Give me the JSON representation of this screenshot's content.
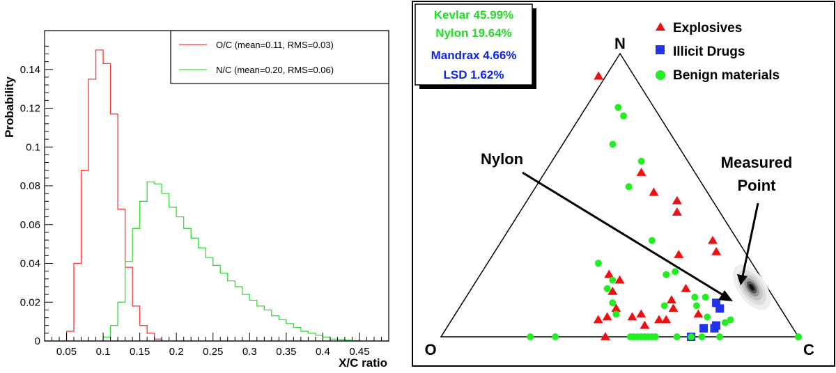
{
  "chart_data": [
    {
      "type": "histogram",
      "xlabel": "X/C ratio",
      "ylabel": "Probability",
      "xlim": [
        0.02,
        0.49
      ],
      "ylim": [
        0,
        0.16
      ],
      "x_ticks": [
        "0.05",
        "0.1",
        "0.15",
        "0.2",
        "0.25",
        "0.3",
        "0.35",
        "0.4",
        "0.45"
      ],
      "x_tick_values": [
        0.05,
        0.1,
        0.15,
        0.2,
        0.25,
        0.3,
        0.35,
        0.4,
        0.45
      ],
      "y_ticks": [
        "0",
        "0.02",
        "0.04",
        "0.06",
        "0.08",
        "0.1",
        "0.12",
        "0.14"
      ],
      "y_tick_values": [
        0,
        0.02,
        0.04,
        0.06,
        0.08,
        0.1,
        0.12,
        0.14
      ],
      "grid": false,
      "legend_position": "top-right",
      "series": [
        {
          "name": "O/C (mean=0.11, RMS=0.03)",
          "color": "#ff3333",
          "bin_edges": [
            0.05,
            0.06,
            0.07,
            0.08,
            0.09,
            0.1,
            0.11,
            0.12,
            0.13,
            0.14,
            0.15,
            0.16,
            0.17,
            0.18
          ],
          "values": [
            0.005,
            0.04,
            0.088,
            0.135,
            0.15,
            0.143,
            0.117,
            0.068,
            0.038,
            0.018,
            0.008,
            0.004,
            0.001
          ]
        },
        {
          "name": "N/C (mean=0.20, RMS=0.06)",
          "color": "#33dd33",
          "bin_edges": [
            0.1,
            0.11,
            0.12,
            0.13,
            0.14,
            0.15,
            0.16,
            0.17,
            0.18,
            0.19,
            0.2,
            0.21,
            0.22,
            0.23,
            0.24,
            0.25,
            0.26,
            0.27,
            0.28,
            0.29,
            0.3,
            0.31,
            0.32,
            0.33,
            0.34,
            0.35,
            0.36,
            0.37,
            0.38,
            0.39,
            0.4,
            0.41,
            0.42,
            0.43,
            0.44,
            0.45
          ],
          "values": [
            0.002,
            0.008,
            0.02,
            0.041,
            0.058,
            0.072,
            0.082,
            0.081,
            0.076,
            0.069,
            0.064,
            0.058,
            0.053,
            0.048,
            0.043,
            0.039,
            0.035,
            0.031,
            0.028,
            0.024,
            0.021,
            0.018,
            0.016,
            0.013,
            0.011,
            0.009,
            0.007,
            0.005,
            0.004,
            0.003,
            0.002,
            0.001,
            0.0007,
            0.0004,
            0.0002
          ]
        }
      ]
    },
    {
      "type": "scatter",
      "subtype": "ternary",
      "vertex_labels": {
        "top": "N",
        "left": "O",
        "right": "C"
      },
      "grid": false,
      "legend_position": "top-right",
      "legend": [
        {
          "label": "Explosives",
          "marker": "triangle",
          "color": "#ee1111"
        },
        {
          "label": "Illicit Drugs",
          "marker": "square",
          "color": "#2233ee"
        },
        {
          "label": "Benign materials",
          "marker": "circle",
          "color": "#22ee22"
        }
      ],
      "match_box": [
        {
          "text": "Kevlar 45.99%",
          "color": "#22dd22"
        },
        {
          "text": "Nylon 19.64%",
          "color": "#22dd22"
        },
        {
          "text": "Mandrax 4.66%",
          "color": "#1122ee"
        },
        {
          "text": "LSD 1.62%",
          "color": "#1122ee"
        }
      ],
      "annotations": [
        {
          "text": "Nylon"
        },
        {
          "text": "Measured"
        },
        {
          "text": "Point"
        }
      ],
      "measured_point": {
        "O": 0.04,
        "N": 0.15,
        "C": 0.81
      },
      "explosives": [
        [
          0.1,
          0.92
        ],
        [
          0.23,
          0.17
        ],
        [
          0.24,
          0.08
        ],
        [
          0.19,
          0.29
        ],
        [
          0.08,
          0.3
        ],
        [
          0.07,
          0.34
        ],
        [
          0.12,
          0.44
        ],
        [
          0.1,
          0.48
        ],
        [
          0.15,
          0.51
        ],
        [
          0.15,
          0.58
        ],
        [
          0.29,
          0.13
        ],
        [
          0.3,
          0.1
        ],
        [
          0.34,
          0.06
        ],
        [
          0.4,
          0.08
        ],
        [
          0.43,
          0.07
        ],
        [
          0.44,
          0.16
        ],
        [
          0.4,
          0.2
        ],
        [
          0.42,
          0.22
        ],
        [
          0.46,
          0.1
        ],
        [
          0.5,
          0.07
        ],
        [
          0.53,
          0.06
        ],
        [
          0.36,
          0.06
        ],
        [
          0.41,
          0.04
        ],
        [
          0.54,
          0.0
        ]
      ],
      "illicit_drugs": [
        [
          0.17,
          0.1
        ],
        [
          0.17,
          0.12
        ],
        [
          0.21,
          0.04
        ],
        [
          0.22,
          0.03
        ],
        [
          0.25,
          0.03
        ],
        [
          0.3,
          0.0
        ]
      ],
      "benign": [
        [
          0.1,
          0.81
        ],
        [
          0.1,
          0.78
        ],
        [
          0.13,
          0.62
        ],
        [
          0.18,
          0.68
        ],
        [
          0.21,
          0.53
        ],
        [
          0.24,
          0.34
        ],
        [
          0.23,
          0.23
        ],
        [
          0.26,
          0.22
        ],
        [
          0.19,
          0.14
        ],
        [
          0.22,
          0.14
        ],
        [
          0.16,
          0.06
        ],
        [
          0.18,
          0.05
        ],
        [
          0.27,
          0.0
        ],
        [
          0.22,
          0.0
        ],
        [
          0.22,
          0.07
        ],
        [
          0.23,
          0.11
        ],
        [
          0.32,
          0.11
        ],
        [
          0.42,
          0.0
        ],
        [
          0.34,
          0.0
        ],
        [
          0.3,
          0.0
        ],
        [
          0.47,
          0.0
        ],
        [
          0.46,
          0.0
        ],
        [
          0.45,
          0.0
        ],
        [
          0.44,
          0.0
        ],
        [
          0.43,
          0.0
        ],
        [
          0.41,
          0.0
        ],
        [
          0.4,
          0.0
        ],
        [
          0.43,
          0.26
        ],
        [
          0.45,
          0.17
        ],
        [
          0.46,
          0.12
        ],
        [
          0.47,
          0.08
        ],
        [
          0.42,
          0.2
        ],
        [
          0.75,
          0.0
        ],
        [
          0.68,
          0.0
        ],
        [
          0.0,
          0.0
        ],
        [
          0.0,
          0.0
        ]
      ]
    }
  ]
}
